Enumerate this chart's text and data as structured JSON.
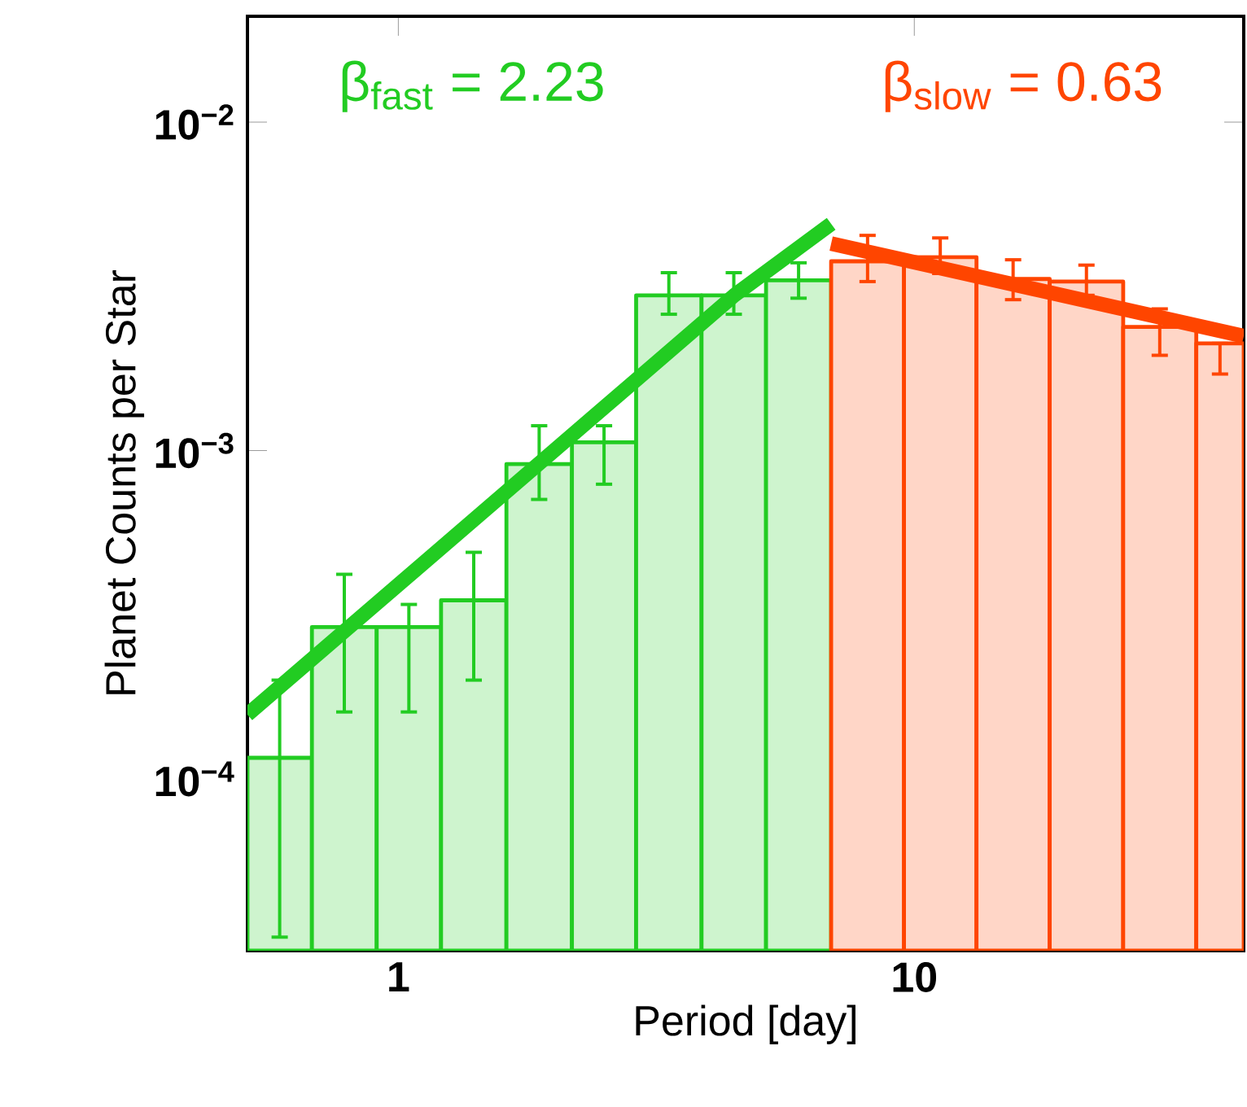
{
  "chart_data": {
    "type": "histogram",
    "xlabel": "Period [day]",
    "ylabel": "Planet Counts per Star",
    "log": "xy",
    "xlim": [
      0.51,
      43.5
    ],
    "ylim": [
      3e-05,
      0.021
    ],
    "xticks": [
      1,
      10
    ],
    "yticks": [
      {
        "value": 0.0001,
        "label": "10$^{−4}$"
      },
      {
        "value": 0.001,
        "label": "10$^{−3}$"
      },
      {
        "value": 0.01,
        "label": "10$^{−2}$"
      }
    ],
    "annotations": [
      "β$_{fast}$ = 2.23",
      "β$_{slow}$ = 0.63"
    ],
    "series": [
      {
        "color": "#22cc22",
        "bins": [
          0.51,
          0.68,
          0.908,
          1.21,
          1.62,
          2.17,
          2.89,
          3.87,
          5.16,
          6.9
        ],
        "values": [
          0.000116,
          0.00029,
          0.00029,
          0.00035,
          0.00091,
          0.00106,
          0.00297,
          0.00297,
          0.0033
        ],
        "errors": [
          [
            3.3e-05,
            0.0002
          ],
          [
            0.00016,
            0.00042
          ],
          [
            0.00016,
            0.00034
          ],
          [
            0.0002,
            0.00049
          ],
          [
            0.00071,
            0.00119
          ],
          [
            0.00079,
            0.00119
          ],
          [
            0.0026,
            0.00348
          ],
          [
            0.0026,
            0.00348
          ],
          [
            0.00291,
            0.00373
          ]
        ]
      },
      {
        "color": "#ff4500",
        "bins": [
          6.9,
          9.55,
          13.2,
          18.3,
          25.4,
          35.2,
          43.5
        ],
        "values": [
          0.00377,
          0.00388,
          0.00333,
          0.00327,
          0.00238,
          0.00212
        ],
        "errors": [
          [
            0.00327,
            0.00452
          ],
          [
            0.00346,
            0.00444
          ],
          [
            0.00288,
            0.00381
          ],
          [
            0.00297,
            0.00367
          ],
          [
            0.00195,
            0.0027
          ],
          [
            0.00171,
            0.00212
          ]
        ]
      },
      {
        "type": "line",
        "color": "#22cc22",
        "x": [
          0.51,
          4.48,
          6.9
        ],
        "values": [
          0.000157,
          0.00297,
          0.0049
        ]
      },
      {
        "type": "line",
        "color": "#ff4500",
        "x": [
          6.9,
          43.5
        ],
        "values": [
          0.00427,
          0.00223
        ]
      }
    ]
  }
}
